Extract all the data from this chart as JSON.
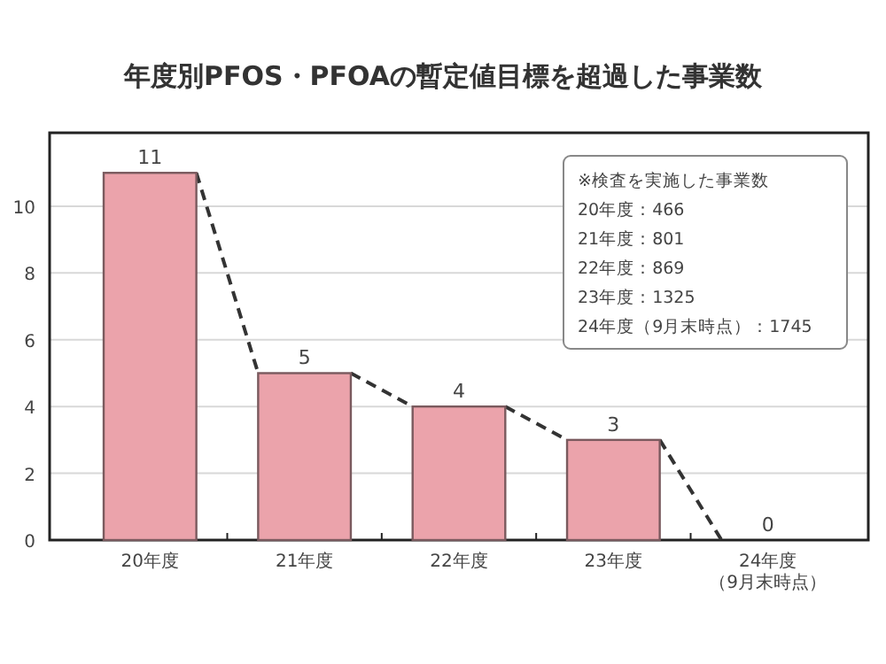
{
  "chart_data": {
    "type": "bar",
    "title": "年度別PFOS・PFOAの暫定値目標を超過した事業数",
    "categories": [
      "20年度",
      "21年度",
      "22年度",
      "23年度",
      "24年度（9月末時点）"
    ],
    "values": [
      11,
      5,
      4,
      3,
      0
    ],
    "color": "#eba3ab",
    "ylim": [
      0,
      12.2
    ],
    "yticks": [
      0,
      2,
      4,
      6,
      8,
      10
    ],
    "grid": "y",
    "data_labels": true,
    "annotations": [
      "※検査を実施した事業数",
      "20年度：466",
      "21年度：801",
      "22年度：869",
      "23年度：1325",
      "24年度（9月末時点）：1745"
    ]
  }
}
